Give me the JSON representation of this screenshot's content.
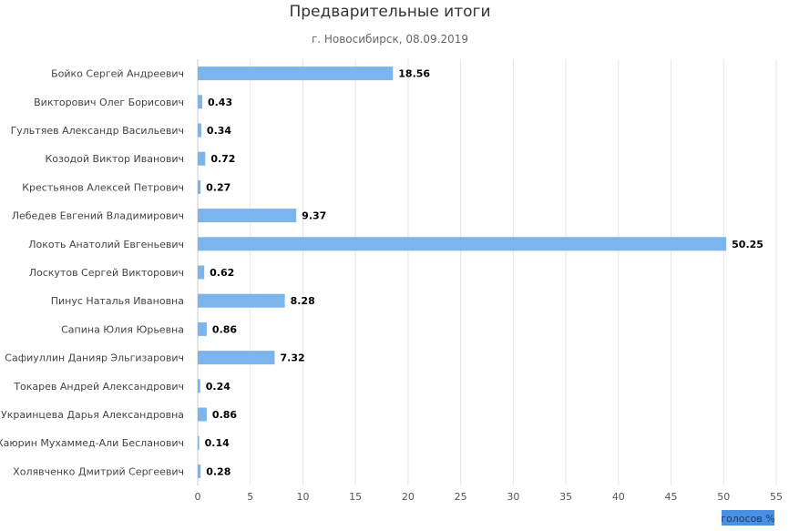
{
  "chart_data": {
    "type": "bar",
    "orientation": "horizontal",
    "title": "Предварительные итоги",
    "subtitle": "г. Новосибирск, 08.09.2019",
    "categories": [
      "Бойко Сергей Андреевич",
      "Викторович Олег Борисович",
      "Гультяев Александр Васильевич",
      "Козодой Виктор Иванович",
      "Крестьянов Алексей Петрович",
      "Лебедев Евгений Владимирович",
      "Локоть Анатолий Евгеньевич",
      "Лоскутов Сергей Викторович",
      "Пинус Наталья Ивановна",
      "Сапина Юлия Юрьевна",
      "Сафиуллин Данияр Эльгизарович",
      "Токарев Андрей Александрович",
      "Украинцева Дарья Александровна",
      "Хаюрин Мухаммед-Али Бесланович",
      "Холявченко Дмитрий Сергеевич"
    ],
    "values": [
      18.56,
      0.43,
      0.34,
      0.72,
      0.27,
      9.37,
      50.25,
      0.62,
      8.28,
      0.86,
      7.32,
      0.24,
      0.86,
      0.14,
      0.28
    ],
    "data_labels": [
      "18.56",
      "0.43",
      "0.34",
      "0.72",
      "0.27",
      "9.37",
      "50.25",
      "0.62",
      "8.28",
      "0.86",
      "7.32",
      "0.24",
      "0.86",
      "0.14",
      "0.28"
    ],
    "xlim": [
      0,
      55
    ],
    "xticks": [
      0,
      5,
      10,
      15,
      20,
      25,
      30,
      35,
      40,
      45,
      50,
      55
    ],
    "xlabel": "голосов %",
    "grid": "vertical",
    "bar_color": "#7cb5ec",
    "grid_color": "#e6e6e6"
  }
}
